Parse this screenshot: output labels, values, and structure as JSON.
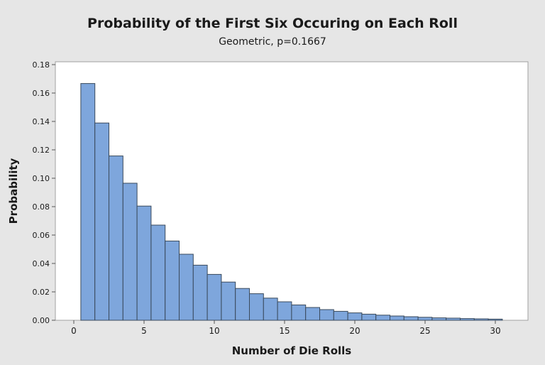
{
  "chart_data": {
    "type": "bar",
    "title": "Probability of the First Six Occuring on Each Roll",
    "subtitle": "Geometric, p=0.1667",
    "xlabel": "Number of Die Rolls",
    "ylabel": "Probability",
    "x_ticks": [
      "0",
      "5",
      "10",
      "15",
      "20",
      "25",
      "30"
    ],
    "y_ticks": [
      "0.00",
      "0.02",
      "0.04",
      "0.06",
      "0.08",
      "0.10",
      "0.12",
      "0.14",
      "0.16",
      "0.18"
    ],
    "xlim": [
      -1,
      32
    ],
    "ylim": [
      0,
      0.18
    ],
    "grid": false,
    "x": [
      1,
      2,
      3,
      4,
      5,
      6,
      7,
      8,
      9,
      10,
      11,
      12,
      13,
      14,
      15,
      16,
      17,
      18,
      19,
      20,
      21,
      22,
      23,
      24,
      25,
      26,
      27,
      28,
      29,
      30
    ],
    "values": [
      0.1667,
      0.1389,
      0.1157,
      0.0965,
      0.0804,
      0.067,
      0.0558,
      0.0465,
      0.0388,
      0.0323,
      0.0269,
      0.0224,
      0.0187,
      0.0156,
      0.013,
      0.0108,
      0.009,
      0.0075,
      0.0063,
      0.0052,
      0.0043,
      0.0036,
      0.003,
      0.0025,
      0.0021,
      0.0017,
      0.0015,
      0.0012,
      0.001,
      0.0008
    ],
    "colors": {
      "bar_fill": "#7ea6dc",
      "bar_stroke": "#3a4a5c",
      "plot_background": "#ffffff",
      "figure_background": "#e6e6e6"
    }
  }
}
